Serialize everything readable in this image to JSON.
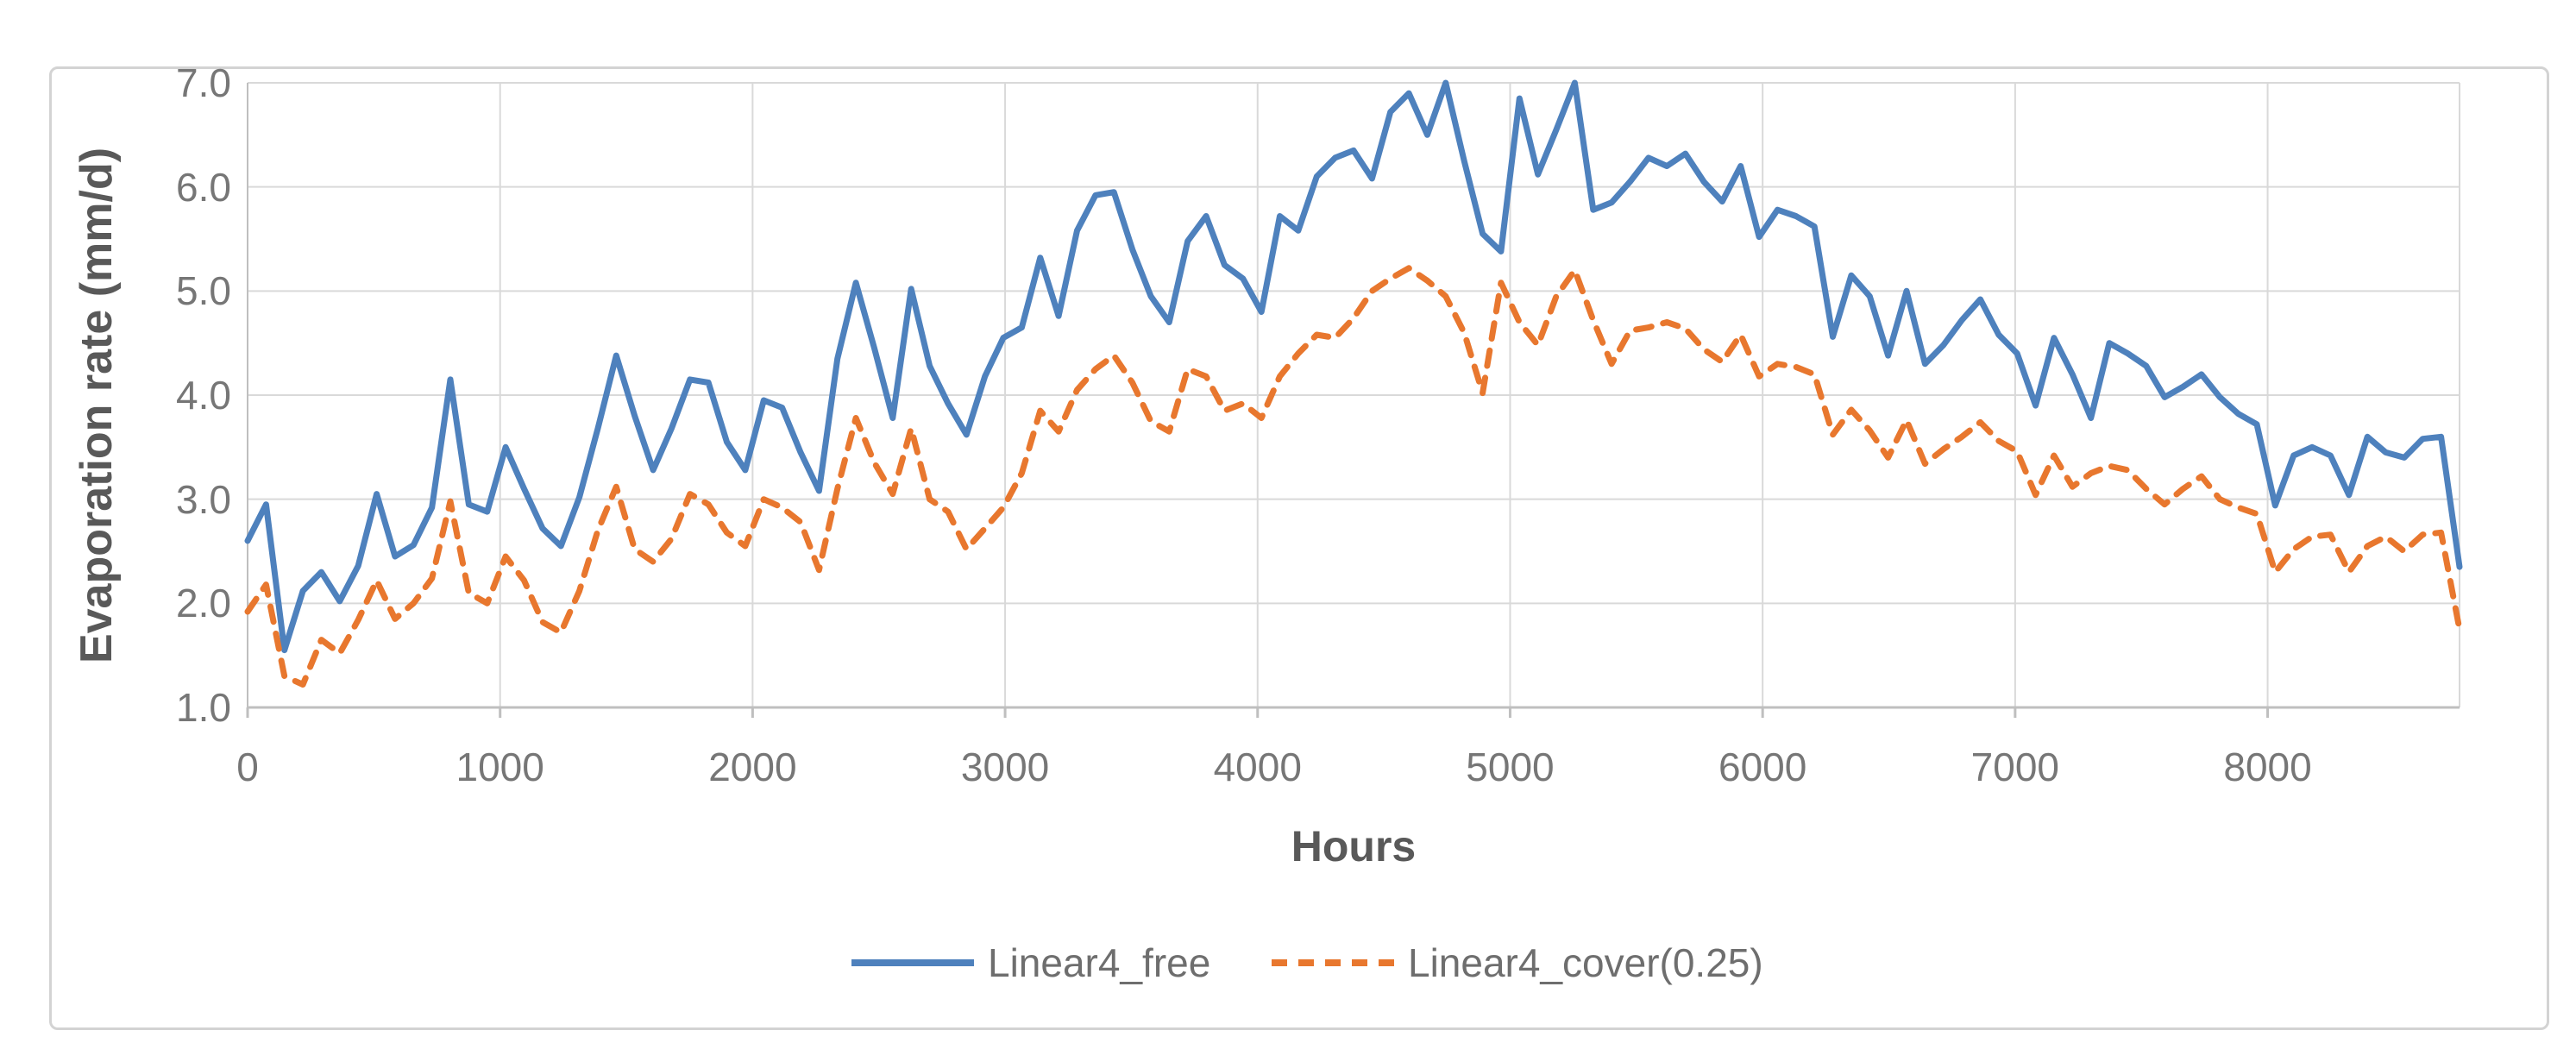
{
  "figure": {
    "background": "#ffffff",
    "border_color": "#d3d3d3"
  },
  "chart_data": {
    "type": "line",
    "title": "",
    "xlabel": "Hours",
    "ylabel": "Evaporation rate (mm/d)",
    "xlim": [
      0,
      8760
    ],
    "ylim": [
      1.0,
      7.0
    ],
    "grid": true,
    "legend_position": "bottom",
    "x_ticks": [
      0,
      1000,
      2000,
      3000,
      4000,
      5000,
      6000,
      7000,
      8000
    ],
    "x_tick_labels": [
      "0",
      "1000",
      "2000",
      "3000",
      "4000",
      "5000",
      "6000",
      "7000",
      "8000"
    ],
    "y_ticks": [
      1.0,
      2.0,
      3.0,
      4.0,
      5.0,
      6.0,
      7.0
    ],
    "y_tick_labels": [
      "1.0",
      "2.0",
      "3.0",
      "4.0",
      "5.0",
      "6.0",
      "7.0"
    ],
    "x_start": 0,
    "x_step": 73,
    "series": [
      {
        "name": "Linear4_free",
        "color": "#4E81BD",
        "style": "solid",
        "values": [
          2.6,
          2.95,
          1.55,
          2.12,
          2.3,
          2.02,
          2.36,
          3.05,
          2.45,
          2.56,
          2.92,
          4.15,
          2.95,
          2.88,
          3.5,
          3.1,
          2.72,
          2.55,
          3.02,
          3.68,
          4.38,
          3.8,
          3.28,
          3.68,
          4.15,
          4.12,
          3.55,
          3.28,
          3.95,
          3.88,
          3.45,
          3.08,
          4.35,
          5.08,
          4.45,
          3.78,
          5.02,
          4.28,
          3.92,
          3.62,
          4.18,
          4.55,
          4.65,
          5.32,
          4.76,
          5.58,
          5.92,
          5.95,
          5.4,
          4.95,
          4.7,
          5.48,
          5.72,
          5.25,
          5.12,
          4.8,
          5.72,
          5.58,
          6.1,
          6.28,
          6.35,
          6.08,
          6.72,
          6.9,
          6.5,
          7.0,
          6.25,
          5.55,
          5.38,
          6.85,
          6.12,
          6.55,
          7.0,
          5.78,
          5.85,
          6.05,
          6.28,
          6.2,
          6.32,
          6.05,
          5.86,
          6.2,
          5.52,
          5.78,
          5.72,
          5.62,
          4.56,
          5.15,
          4.95,
          4.38,
          5.0,
          4.3,
          4.48,
          4.72,
          4.92,
          4.58,
          4.4,
          3.9,
          4.55,
          4.2,
          3.78,
          4.5,
          4.4,
          4.28,
          3.98,
          4.08,
          4.2,
          3.98,
          3.82,
          3.72,
          2.94,
          3.42,
          3.5,
          3.42,
          3.04,
          3.6,
          3.45,
          3.4,
          3.58,
          3.6,
          2.35
        ]
      },
      {
        "name": "Linear4_cover(0.25)",
        "color": "#E8772E",
        "style": "dashed",
        "values": [
          1.92,
          2.18,
          1.3,
          1.22,
          1.65,
          1.52,
          1.84,
          2.22,
          1.85,
          2.0,
          2.24,
          2.98,
          2.1,
          2.0,
          2.45,
          2.22,
          1.82,
          1.72,
          2.12,
          2.7,
          3.12,
          2.52,
          2.4,
          2.62,
          3.05,
          2.95,
          2.68,
          2.55,
          3.0,
          2.92,
          2.78,
          2.32,
          3.1,
          3.78,
          3.35,
          3.05,
          3.68,
          3.0,
          2.88,
          2.52,
          2.72,
          2.92,
          3.25,
          3.85,
          3.65,
          4.05,
          4.25,
          4.38,
          4.12,
          3.75,
          3.65,
          4.25,
          4.18,
          3.85,
          3.92,
          3.78,
          4.18,
          4.4,
          4.58,
          4.55,
          4.74,
          5.0,
          5.12,
          5.22,
          5.1,
          4.95,
          4.6,
          4.02,
          5.08,
          4.7,
          4.48,
          4.95,
          5.2,
          4.72,
          4.3,
          4.62,
          4.65,
          4.7,
          4.64,
          4.44,
          4.32,
          4.58,
          4.18,
          4.3,
          4.27,
          4.2,
          3.62,
          3.86,
          3.66,
          3.4,
          3.76,
          3.34,
          3.48,
          3.6,
          3.74,
          3.56,
          3.46,
          3.04,
          3.42,
          3.12,
          3.25,
          3.32,
          3.28,
          3.1,
          2.95,
          3.1,
          3.22,
          3.0,
          2.92,
          2.86,
          2.3,
          2.52,
          2.64,
          2.66,
          2.3,
          2.55,
          2.64,
          2.5,
          2.66,
          2.68,
          1.75
        ]
      }
    ],
    "colors": {
      "gridline": "#D9D9D9",
      "axis_line": "#BFBFBF",
      "tick_text": "#767676",
      "title_text": "#595959"
    }
  }
}
